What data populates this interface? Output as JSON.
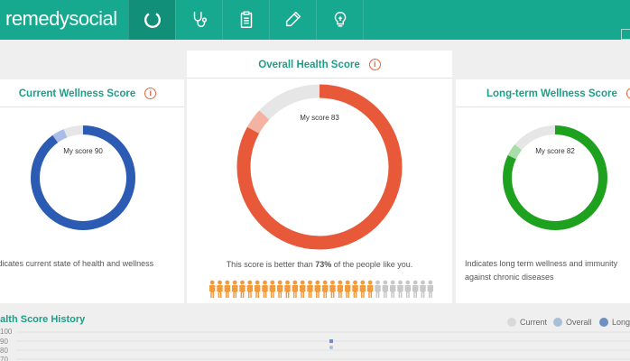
{
  "app": {
    "logo_main": "remedy",
    "logo_light": "social"
  },
  "nav": [
    {
      "icon": "progress-circle-icon",
      "active": true
    },
    {
      "icon": "stethoscope-icon",
      "active": false
    },
    {
      "icon": "clipboard-icon",
      "active": false
    },
    {
      "icon": "pencil-icon",
      "active": false
    },
    {
      "icon": "lightbulb-icon",
      "active": false
    }
  ],
  "cards": {
    "current": {
      "title": "Current Wellness Score",
      "score_label": "My score 90",
      "score": 90,
      "description": "Indicates current state of health and wellness",
      "color": "#2c5bb3",
      "highlight_color": "#a9bde6"
    },
    "overall": {
      "title": "Overall Health Score",
      "score_label": "My score 83",
      "score": 83,
      "description_pre": "This score is better than ",
      "description_bold": "73%",
      "description_post": " of the people like you.",
      "percentile": 73,
      "color": "#e8593a",
      "highlight_color": "#f4b3a2"
    },
    "longterm": {
      "title": "Long-term Wellness Score",
      "score_label": "My score 82",
      "score": 82,
      "description_line1": "Indicates long term wellness and immunity",
      "description_line2": "against chronic diseases",
      "color": "#1ea11e",
      "highlight_color": "#a8dca8"
    }
  },
  "info_glyph": "i",
  "history": {
    "title": "ealth Score History",
    "legend": [
      {
        "label": "Current",
        "color": "#d9d9d9"
      },
      {
        "label": "Overall",
        "color": "#a9bfd6"
      },
      {
        "label": "Long",
        "color": "#6f8fc4"
      }
    ],
    "yticks": [
      "100",
      "90",
      "80",
      "70"
    ]
  },
  "people": {
    "orange_count": 22,
    "gray_count": 8,
    "orange": "#f39a3d",
    "gray": "#c8c8c8"
  }
}
